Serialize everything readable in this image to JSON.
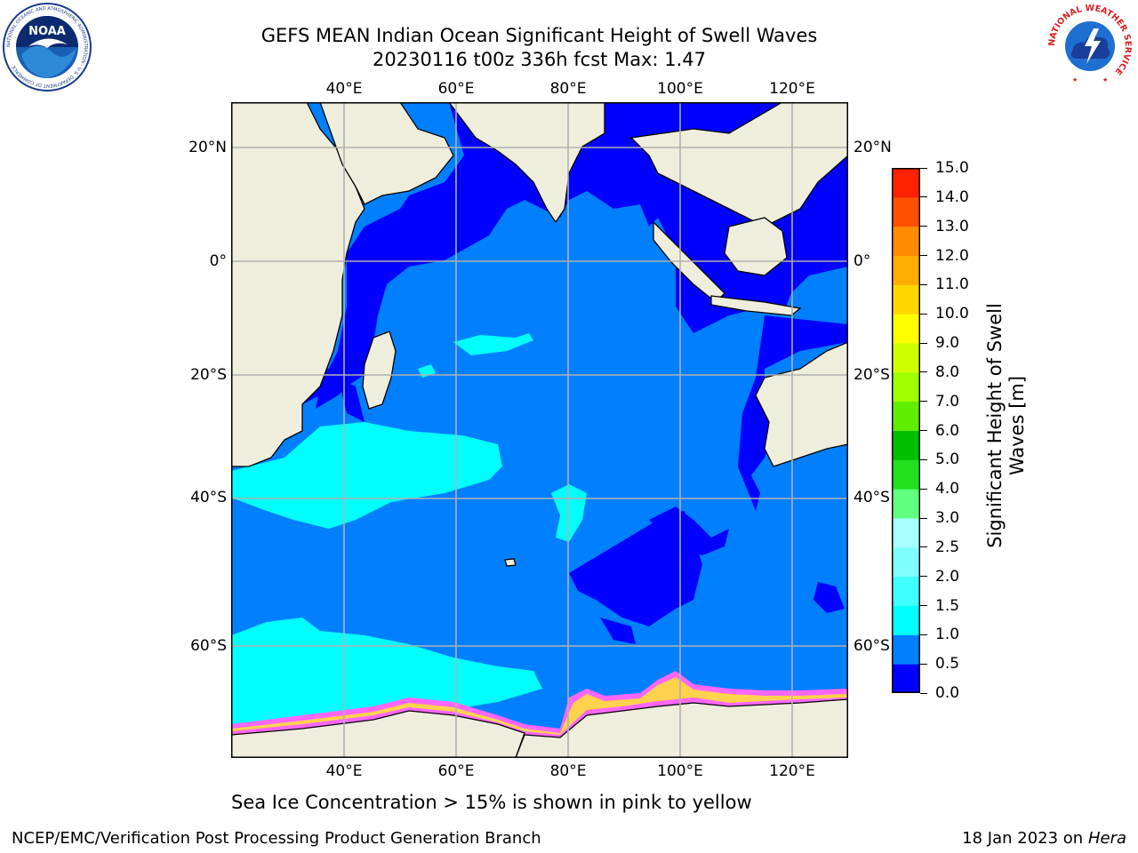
{
  "title": {
    "line1": "GEFS MEAN Indian Ocean Significant Height of Swell Waves",
    "line2": "20230116 t00z 336h fcst   Max: 1.47"
  },
  "logos": {
    "left": {
      "name": "NOAA",
      "ring_text": "NATIONAL OCEANIC AND ATMOSPHERIC ADMINISTRATION · U.S. DEPARTMENT OF COMMERCE"
    },
    "right": {
      "name": "NATIONAL WEATHER SERVICE"
    }
  },
  "map": {
    "lon_ticks": [
      "40°E",
      "60°E",
      "80°E",
      "100°E",
      "120°E"
    ],
    "lat_ticks_left": [
      "20°N",
      "0°",
      "20°S",
      "40°S",
      "60°S"
    ],
    "lat_ticks_right": [
      "20°N",
      "0°",
      "20°S",
      "40°S",
      "60°S"
    ],
    "lon_range": [
      20,
      130
    ],
    "lat_range": [
      -70,
      28
    ],
    "land_color": "#efeedd",
    "grid": true,
    "note": "Sea Ice Concentration > 15% is shown in pink to yellow"
  },
  "colorbar": {
    "label": "Significant Height of Swell Waves [m]",
    "levels": [
      "0.0",
      "0.5",
      "1.0",
      "1.5",
      "2.0",
      "2.5",
      "3.0",
      "4.0",
      "5.0",
      "6.0",
      "7.0",
      "8.0",
      "9.0",
      "10.0",
      "11.0",
      "12.0",
      "13.0",
      "14.0",
      "15.0"
    ],
    "colors": [
      "#0000ff",
      "#0080ff",
      "#00ffff",
      "#40ffff",
      "#80ffff",
      "#a8ffff",
      "#60ff80",
      "#20e020",
      "#00c000",
      "#60ee00",
      "#a0ff00",
      "#d0ff00",
      "#ffff00",
      "#ffd700",
      "#ffae00",
      "#ff8c00",
      "#ff5000",
      "#ff2000"
    ]
  },
  "footer": {
    "left": "NCEP/EMC/Verification Post Processing Product Generation Branch",
    "right_prefix": "18 Jan 2023 on ",
    "right_host": "Hera"
  }
}
